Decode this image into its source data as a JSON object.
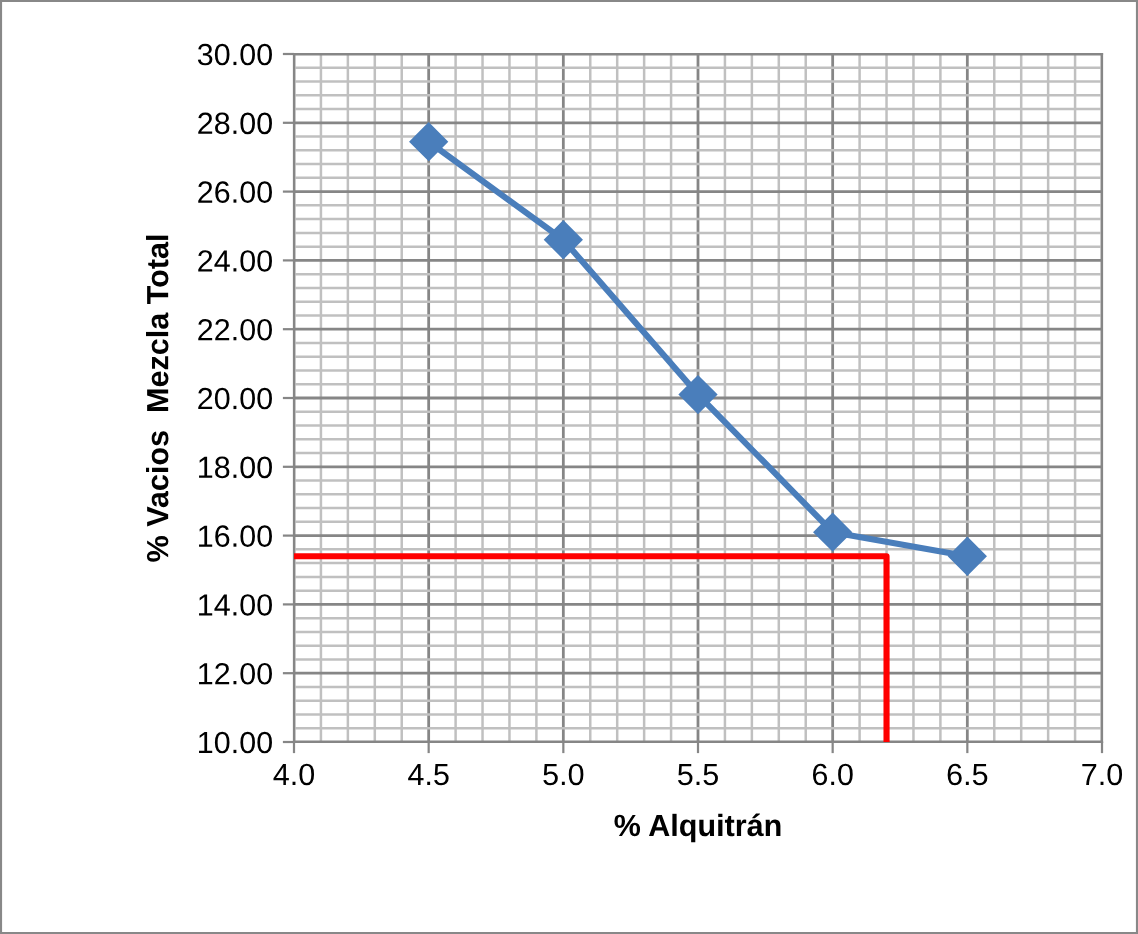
{
  "chart_data": {
    "type": "line",
    "xlabel": "% Alquitrán",
    "ylabel": "% Vacios  Mezcla Total",
    "xlim": [
      4.0,
      7.0
    ],
    "xticks": [
      {
        "value": 4.0,
        "label": "4.0"
      },
      {
        "value": 4.5,
        "label": "4.5"
      },
      {
        "value": 5.0,
        "label": "5.0"
      },
      {
        "value": 5.5,
        "label": "5.5"
      },
      {
        "value": 6.0,
        "label": "6.0"
      },
      {
        "value": 6.5,
        "label": "6.5"
      },
      {
        "value": 7.0,
        "label": "7.0"
      }
    ],
    "ylim": [
      10,
      30
    ],
    "yticks": [
      {
        "value": 10,
        "label": "10.00"
      },
      {
        "value": 12,
        "label": "12.00"
      },
      {
        "value": 14,
        "label": "14.00"
      },
      {
        "value": 16,
        "label": "16.00"
      },
      {
        "value": 18,
        "label": "18.00"
      },
      {
        "value": 20,
        "label": "20.00"
      },
      {
        "value": 22,
        "label": "22.00"
      },
      {
        "value": 24,
        "label": "24.00"
      },
      {
        "value": 26,
        "label": "26.00"
      },
      {
        "value": 28,
        "label": "28.00"
      },
      {
        "value": 30,
        "label": "30.00"
      }
    ],
    "grid": true,
    "series": [
      {
        "x": [
          4.5,
          5.0,
          5.5,
          6.0,
          6.5
        ],
        "values": [
          27.45,
          24.6,
          20.1,
          16.1,
          15.4
        ],
        "color": "#4a7ebb",
        "marker": "diamond"
      },
      {
        "x": [
          4.0,
          6.2,
          6.2
        ],
        "values": [
          15.4,
          15.4,
          10.0
        ],
        "color": "#ff0000",
        "marker": "none"
      }
    ]
  }
}
